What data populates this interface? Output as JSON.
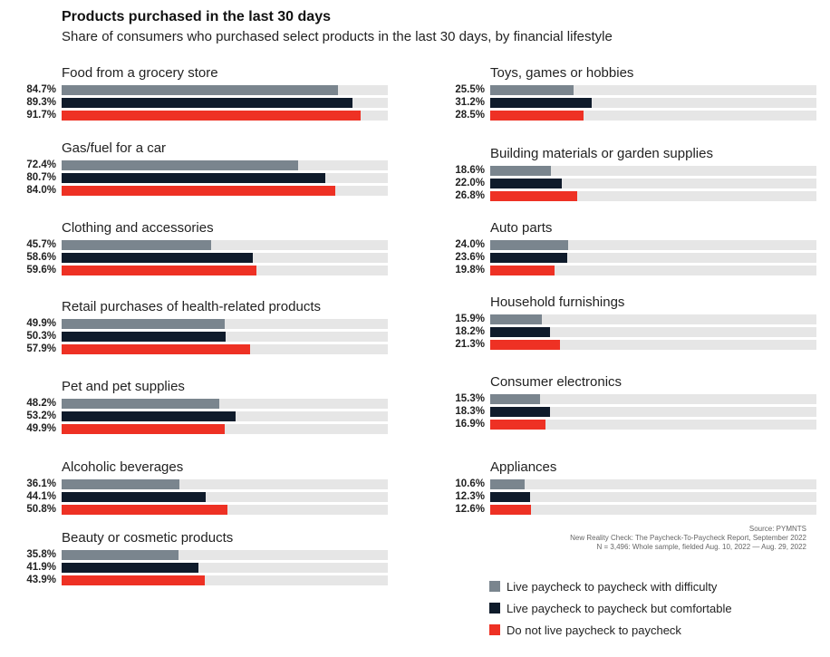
{
  "title": "Products purchased in the last 30 days",
  "subtitle": "Share of consumers who purchased select products in the last 30 days, by financial lifestyle",
  "source": [
    "Source: PYMNTS",
    "New Reality Check: The Paycheck-To-Paycheck Report, September 2022",
    "N = 3,496: Whole sample, fielded Aug. 10, 2022 — Aug. 29, 2022"
  ],
  "colors": {
    "difficulty": "#7a858e",
    "comfortable": "#0f1b2b",
    "not_p2p": "#ee3124",
    "track": "#e6e6e6"
  },
  "legend": [
    {
      "label": "Live paycheck to paycheck with difficulty",
      "color": "#7a858e"
    },
    {
      "label": "Live paycheck to paycheck but comfortable",
      "color": "#0f1b2b"
    },
    {
      "label": "Do not live paycheck to paycheck",
      "color": "#ee3124"
    }
  ],
  "chart_data": {
    "type": "bar",
    "orientation": "horizontal",
    "title": "Products purchased in the last 30 days",
    "subtitle": "Share of consumers who purchased select products in the last 30 days, by financial lifestyle",
    "xlim": [
      0,
      100
    ],
    "unit": "%",
    "series_names": [
      "Live paycheck to paycheck with difficulty",
      "Live paycheck to paycheck but comfortable",
      "Do not live paycheck to paycheck"
    ],
    "categories": [
      {
        "name": "Food from a grocery store",
        "values": [
          84.7,
          89.3,
          91.7
        ],
        "labels": [
          "84.7%",
          "89.3%",
          "91.7%"
        ]
      },
      {
        "name": "Gas/fuel for a car",
        "values": [
          72.4,
          80.7,
          84.0
        ],
        "labels": [
          "72.4%",
          "80.7%",
          "84.0%"
        ]
      },
      {
        "name": "Clothing and accessories",
        "values": [
          45.7,
          58.6,
          59.6
        ],
        "labels": [
          "45.7%",
          "58.6%",
          "59.6%"
        ]
      },
      {
        "name": "Retail purchases of health-related products",
        "values": [
          49.9,
          50.3,
          57.9
        ],
        "labels": [
          "49.9%",
          "50.3%",
          "57.9%"
        ]
      },
      {
        "name": "Pet and pet supplies",
        "values": [
          48.2,
          53.2,
          49.9
        ],
        "labels": [
          "48.2%",
          "53.2%",
          "49.9%"
        ]
      },
      {
        "name": "Alcoholic beverages",
        "values": [
          36.1,
          44.1,
          50.8
        ],
        "labels": [
          "36.1%",
          "44.1%",
          "50.8%"
        ]
      },
      {
        "name": "Beauty or cosmetic products",
        "values": [
          35.8,
          41.9,
          43.9
        ],
        "labels": [
          "35.8%",
          "41.9%",
          "43.9%"
        ]
      },
      {
        "name": "Toys, games or hobbies",
        "values": [
          25.5,
          31.2,
          28.5
        ],
        "labels": [
          "25.5%",
          "31.2%",
          "28.5%"
        ]
      },
      {
        "name": "Building materials or garden supplies",
        "values": [
          18.6,
          22.0,
          26.8
        ],
        "labels": [
          "18.6%",
          "22.0%",
          "26.8%"
        ]
      },
      {
        "name": "Auto parts",
        "values": [
          24.0,
          23.6,
          19.8
        ],
        "labels": [
          "24.0%",
          "23.6%",
          "19.8%"
        ]
      },
      {
        "name": "Household furnishings",
        "values": [
          15.9,
          18.2,
          21.3
        ],
        "labels": [
          "15.9%",
          "18.2%",
          "21.3%"
        ]
      },
      {
        "name": "Consumer electronics",
        "values": [
          15.3,
          18.3,
          16.9
        ],
        "labels": [
          "15.3%",
          "18.3%",
          "16.9%"
        ]
      },
      {
        "name": "Appliances",
        "values": [
          10.6,
          12.3,
          12.6
        ],
        "labels": [
          "10.6%",
          "12.3%",
          "12.6%"
        ]
      }
    ]
  }
}
